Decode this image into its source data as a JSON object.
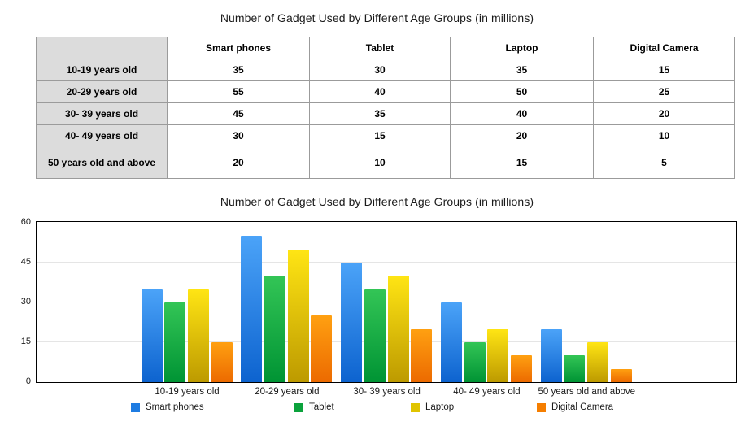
{
  "table_title": "Number of Gadget Used by Different Age Groups (in millions)",
  "table": {
    "corner_label": "",
    "columns": [
      "Smart phones",
      "Tablet",
      "Laptop",
      "Digital Camera"
    ],
    "rows": [
      {
        "label": "10-19 years old",
        "values": [
          35,
          30,
          35,
          15
        ]
      },
      {
        "label": "20-29 years old",
        "values": [
          55,
          40,
          50,
          25
        ]
      },
      {
        "label": "30- 39 years old",
        "values": [
          45,
          35,
          40,
          20
        ]
      },
      {
        "label": "40- 49 years old",
        "values": [
          30,
          15,
          20,
          10
        ]
      },
      {
        "label": "50 years old and above",
        "values": [
          20,
          10,
          15,
          5
        ]
      }
    ]
  },
  "chart_data": {
    "type": "bar",
    "title": "Number of Gadget Used by Different Age Groups (in millions)",
    "categories": [
      "10-19 years old",
      "20-29 years old",
      "30- 39 years old",
      "40- 49 years old",
      "50 years old and above"
    ],
    "series": [
      {
        "name": "Smart phones",
        "values": [
          35,
          55,
          45,
          30,
          20
        ],
        "color_top": "#4ba3f8",
        "color_bottom": "#0d63cf",
        "legend_color": "#1e7ce2"
      },
      {
        "name": "Tablet",
        "values": [
          30,
          40,
          35,
          15,
          10
        ],
        "color_top": "#33c556",
        "color_bottom": "#009434",
        "legend_color": "#0ba23c"
      },
      {
        "name": "Laptop",
        "values": [
          35,
          50,
          40,
          20,
          15
        ],
        "color_top": "#ffe514",
        "color_bottom": "#bd9a00",
        "legend_color": "#e0c400"
      },
      {
        "name": "Digital Camera",
        "values": [
          15,
          25,
          20,
          10,
          5
        ],
        "color_top": "#ffa011",
        "color_bottom": "#ec6a00",
        "legend_color": "#f57e00"
      }
    ],
    "ylim": [
      0,
      60
    ],
    "yticks": [
      0,
      15,
      30,
      45,
      60
    ],
    "grid": "horizontal-light",
    "legend_position": "bottom",
    "xlabel": "",
    "ylabel": ""
  }
}
